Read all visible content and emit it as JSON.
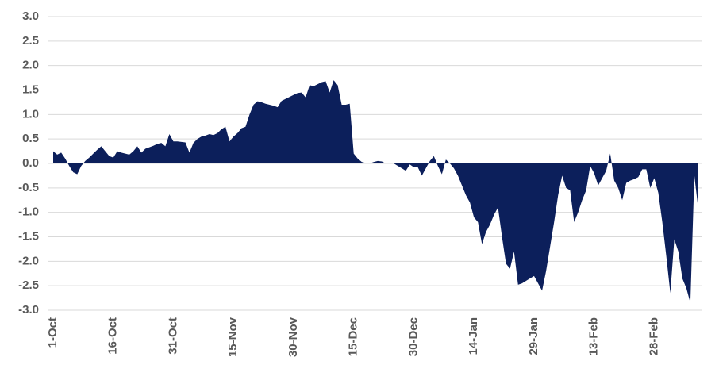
{
  "chart_data": {
    "type": "area",
    "categories": [
      "1-Oct",
      null,
      null,
      null,
      null,
      null,
      null,
      null,
      null,
      null,
      null,
      null,
      null,
      null,
      null,
      "16-Oct",
      null,
      null,
      null,
      null,
      null,
      null,
      null,
      null,
      null,
      null,
      null,
      null,
      null,
      null,
      "31-Oct",
      null,
      null,
      null,
      null,
      null,
      null,
      null,
      null,
      null,
      null,
      null,
      null,
      null,
      null,
      "15-Nov",
      null,
      null,
      null,
      null,
      null,
      null,
      null,
      null,
      null,
      null,
      null,
      null,
      null,
      null,
      "30-Nov",
      null,
      null,
      null,
      null,
      null,
      null,
      null,
      null,
      null,
      null,
      null,
      null,
      null,
      null,
      "15-Dec",
      null,
      null,
      null,
      null,
      null,
      null,
      null,
      null,
      null,
      null,
      null,
      null,
      null,
      null,
      "30-Dec",
      null,
      null,
      null,
      null,
      null,
      null,
      null,
      null,
      null,
      null,
      null,
      null,
      null,
      null,
      "14-Jan",
      null,
      null,
      null,
      null,
      null,
      null,
      null,
      null,
      null,
      null,
      null,
      null,
      null,
      null,
      "29-Jan",
      null,
      null,
      null,
      null,
      null,
      null,
      null,
      null,
      null,
      null,
      null,
      null,
      null,
      null,
      "13-Feb",
      null,
      null,
      null,
      null,
      null,
      null,
      null,
      null,
      null,
      null,
      null,
      null,
      null,
      null,
      "28-Feb",
      null,
      null,
      null,
      null,
      null,
      null,
      null,
      null,
      null,
      null,
      null
    ],
    "values": [
      0.25,
      0.18,
      0.22,
      0.1,
      -0.05,
      -0.18,
      -0.22,
      -0.05,
      0.05,
      0.12,
      0.2,
      0.28,
      0.35,
      0.25,
      0.15,
      0.12,
      0.25,
      0.22,
      0.2,
      0.18,
      0.25,
      0.35,
      0.22,
      0.3,
      0.33,
      0.36,
      0.4,
      0.42,
      0.35,
      0.6,
      0.45,
      0.45,
      0.44,
      0.43,
      0.22,
      0.42,
      0.5,
      0.55,
      0.57,
      0.6,
      0.58,
      0.62,
      0.7,
      0.75,
      0.45,
      0.55,
      0.62,
      0.72,
      0.75,
      1.0,
      1.2,
      1.27,
      1.25,
      1.22,
      1.2,
      1.18,
      1.15,
      1.28,
      1.32,
      1.36,
      1.4,
      1.44,
      1.45,
      1.35,
      1.6,
      1.58,
      1.62,
      1.66,
      1.68,
      1.45,
      1.7,
      1.6,
      1.2,
      1.2,
      1.22,
      0.2,
      0.1,
      0.03,
      0.01,
      0.0,
      0.03,
      0.05,
      0.04,
      0.0,
      0.0,
      0.0,
      -0.05,
      -0.1,
      -0.15,
      -0.02,
      -0.08,
      -0.08,
      -0.25,
      -0.1,
      0.05,
      0.15,
      -0.05,
      -0.22,
      0.08,
      0.0,
      -0.1,
      -0.25,
      -0.45,
      -0.65,
      -0.8,
      -1.1,
      -1.2,
      -1.65,
      -1.4,
      -1.25,
      -1.05,
      -0.9,
      -1.5,
      -2.05,
      -2.15,
      -1.8,
      -2.48,
      -2.45,
      -2.4,
      -2.35,
      -2.3,
      -2.45,
      -2.6,
      -2.2,
      -1.7,
      -1.2,
      -0.65,
      -0.25,
      -0.5,
      -0.55,
      -1.2,
      -1.0,
      -0.75,
      -0.55,
      -0.05,
      -0.2,
      -0.45,
      -0.3,
      -0.15,
      0.2,
      -0.35,
      -0.5,
      -0.75,
      -0.4,
      -0.35,
      -0.32,
      -0.28,
      -0.12,
      -0.12,
      -0.5,
      -0.3,
      -0.6,
      -1.2,
      -1.9,
      -2.65,
      -1.55,
      -1.8,
      -2.35,
      -2.55,
      -2.85,
      -0.25,
      -0.95
    ],
    "color": "#0c1f5b",
    "ylim": [
      -3,
      3
    ],
    "yticks": [
      {
        "value": 3,
        "label": "3.0"
      },
      {
        "value": 2.5,
        "label": "2.5"
      },
      {
        "value": 2,
        "label": "2.0"
      },
      {
        "value": 1.5,
        "label": "1.5"
      },
      {
        "value": 1,
        "label": "1.0"
      },
      {
        "value": 0.5,
        "label": "0.5"
      },
      {
        "value": 0,
        "label": "0.0"
      },
      {
        "value": -0.5,
        "label": "-0.5"
      },
      {
        "value": -1,
        "label": "-1.0"
      },
      {
        "value": -1.5,
        "label": "-1.5"
      },
      {
        "value": -2,
        "label": "-2.0"
      },
      {
        "value": -2.5,
        "label": "-2.5"
      },
      {
        "value": -3,
        "label": "-3.0"
      }
    ],
    "grid": true
  }
}
